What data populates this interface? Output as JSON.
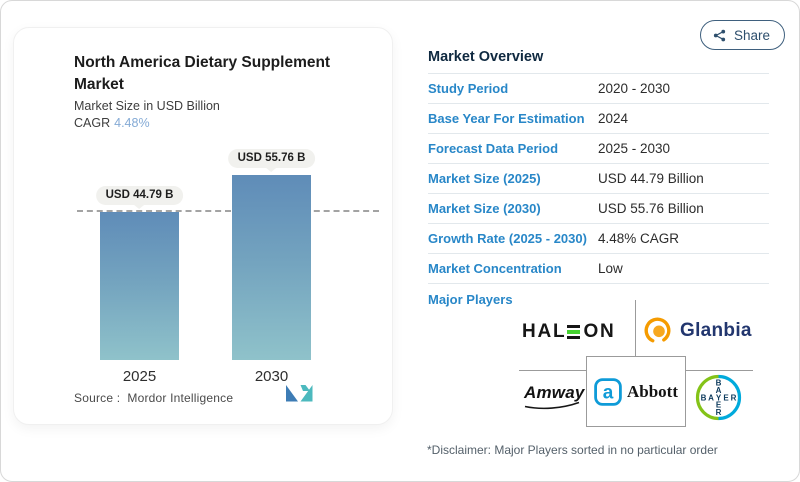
{
  "page": {
    "share_label": "Share"
  },
  "chart_card": {
    "title": "North America Dietary Supplement Market",
    "subtitle": "Market Size in USD Billion",
    "cagr_label": "CAGR",
    "cagr_value": "4.48%",
    "source_label": "Source :",
    "source_value": "Mordor Intelligence"
  },
  "chart_data": {
    "type": "bar",
    "title": "North America Dietary Supplement Market",
    "ylabel": "Market Size in USD Billion",
    "categories": [
      "2025",
      "2030"
    ],
    "values": [
      44.79,
      55.76
    ],
    "bar_labels": [
      "USD 44.79 B",
      "USD 55.76 B"
    ],
    "ylim": [
      0,
      60
    ],
    "grid": false,
    "legend": "none",
    "reference_line_value": 44.79,
    "bar_gradient_top": "#5f8cb8",
    "bar_gradient_bottom": "#8fc2ca"
  },
  "overview": {
    "heading": "Market Overview",
    "rows": [
      {
        "label": "Study Period",
        "value": "2020 - 2030"
      },
      {
        "label": "Base Year For Estimation",
        "value": "2024"
      },
      {
        "label": "Forecast Data Period",
        "value": "2025 - 2030"
      },
      {
        "label": "Market Size (2025)",
        "value": "USD 44.79 Billion"
      },
      {
        "label": "Market Size (2030)",
        "value": "USD 55.76 Billion"
      },
      {
        "label": "Growth Rate (2025 - 2030)",
        "value": "4.48% CAGR"
      },
      {
        "label": "Market Concentration",
        "value": "Low"
      }
    ],
    "major_players_label": "Major Players",
    "logos": {
      "haleon": {
        "prefix": "HAL",
        "suffix": "ON"
      },
      "glanbia": {
        "label": "Glanbia"
      },
      "amway": {
        "label": "Amway"
      },
      "abbott": {
        "label": "Abbott",
        "symbol": "a"
      },
      "bayer": {
        "letters": [
          "B",
          "A",
          "Y",
          "E",
          "R"
        ]
      }
    },
    "players": [
      "Haleon",
      "Glanbia",
      "Amway",
      "Abbott",
      "Bayer"
    ],
    "disclaimer": "*Disclaimer: Major Players sorted in no particular order"
  },
  "colors": {
    "accent_blue_label": "#2887c8",
    "heading_navy": "#0f2940",
    "cagr_value_blue": "#84aad5",
    "bar_top": "#5f8cb8",
    "bar_bottom": "#8fc2ca",
    "haleon_green": "#46d331",
    "glanbia_orange": "#f59b00",
    "abbott_blue": "#0e9bd8",
    "bayer_green": "#84c318",
    "bayer_blue": "#00aadc"
  }
}
